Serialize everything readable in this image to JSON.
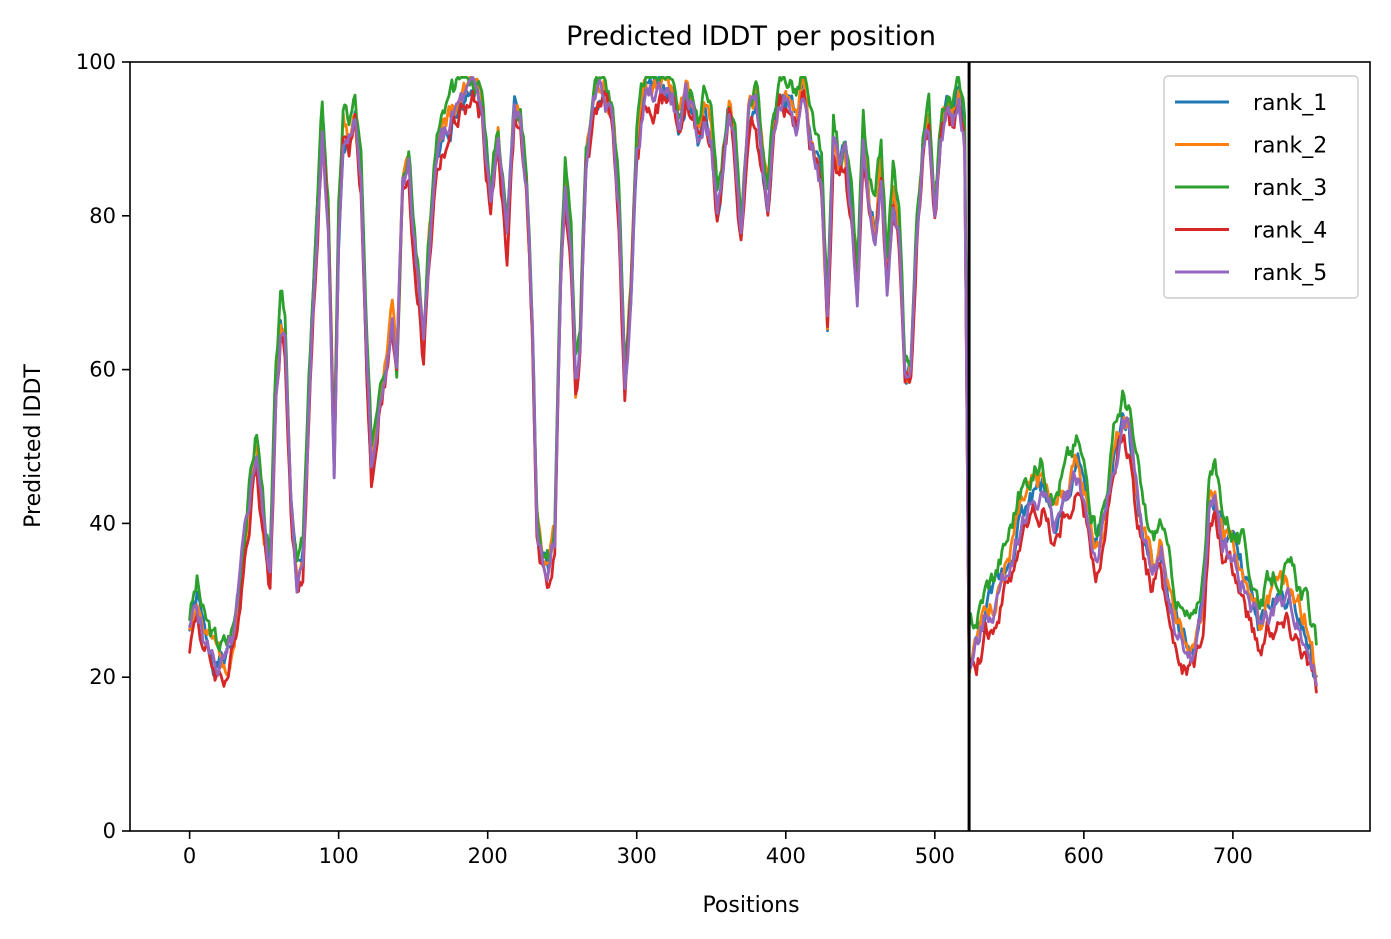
{
  "chart_data": {
    "type": "line",
    "title": "Predicted lDDT per position",
    "xlabel": "Positions",
    "ylabel": "Predicted lDDT",
    "xlim": [
      -40,
      792
    ],
    "ylim": [
      0,
      100
    ],
    "xticks": [
      0,
      100,
      200,
      300,
      400,
      500,
      600,
      700
    ],
    "yticks": [
      0,
      20,
      40,
      60,
      80,
      100
    ],
    "grid": false,
    "legend_position": "top-right",
    "vline_x": 523,
    "series": [
      {
        "name": "rank_1",
        "color": "#1f77b4",
        "offset": 0.0,
        "seed": 1
      },
      {
        "name": "rank_2",
        "color": "#ff7f0e",
        "offset": 0.6,
        "seed": 2
      },
      {
        "name": "rank_3",
        "color": "#2ca02c",
        "offset": 2.2,
        "seed": 3
      },
      {
        "name": "rank_4",
        "color": "#d62728",
        "offset": -1.6,
        "seed": 4
      },
      {
        "name": "rank_5",
        "color": "#9467bd",
        "offset": -0.4,
        "seed": 5
      }
    ],
    "profile": [
      [
        0,
        26
      ],
      [
        5,
        30
      ],
      [
        10,
        25
      ],
      [
        18,
        22
      ],
      [
        25,
        22
      ],
      [
        30,
        25
      ],
      [
        36,
        36
      ],
      [
        42,
        46
      ],
      [
        45,
        50
      ],
      [
        50,
        40
      ],
      [
        54,
        33
      ],
      [
        58,
        58
      ],
      [
        61,
        66
      ],
      [
        64,
        64
      ],
      [
        68,
        42
      ],
      [
        72,
        33
      ],
      [
        76,
        35
      ],
      [
        82,
        65
      ],
      [
        86,
        80
      ],
      [
        89,
        92
      ],
      [
        93,
        80
      ],
      [
        97,
        48
      ],
      [
        100,
        78
      ],
      [
        103,
        91
      ],
      [
        107,
        90
      ],
      [
        111,
        93
      ],
      [
        115,
        85
      ],
      [
        119,
        60
      ],
      [
        122,
        47
      ],
      [
        125,
        52
      ],
      [
        128,
        58
      ],
      [
        133,
        62
      ],
      [
        136,
        66
      ],
      [
        139,
        60
      ],
      [
        143,
        85
      ],
      [
        147,
        87
      ],
      [
        150,
        78
      ],
      [
        154,
        70
      ],
      [
        157,
        62
      ],
      [
        160,
        74
      ],
      [
        166,
        88
      ],
      [
        174,
        92
      ],
      [
        182,
        95
      ],
      [
        190,
        96
      ],
      [
        196,
        94
      ],
      [
        202,
        82
      ],
      [
        207,
        90
      ],
      [
        213,
        77
      ],
      [
        218,
        94
      ],
      [
        222,
        92
      ],
      [
        226,
        84
      ],
      [
        230,
        65
      ],
      [
        233,
        40
      ],
      [
        237,
        35
      ],
      [
        241,
        34
      ],
      [
        245,
        38
      ],
      [
        249,
        72
      ],
      [
        252,
        85
      ],
      [
        256,
        75
      ],
      [
        259,
        58
      ],
      [
        262,
        63
      ],
      [
        266,
        88
      ],
      [
        272,
        95
      ],
      [
        278,
        96
      ],
      [
        284,
        92
      ],
      [
        288,
        82
      ],
      [
        292,
        58
      ],
      [
        296,
        70
      ],
      [
        300,
        88
      ],
      [
        305,
        95
      ],
      [
        312,
        96
      ],
      [
        318,
        97
      ],
      [
        324,
        96
      ],
      [
        328,
        92
      ],
      [
        333,
        95
      ],
      [
        338,
        94
      ],
      [
        342,
        90
      ],
      [
        346,
        94
      ],
      [
        350,
        90
      ],
      [
        354,
        80
      ],
      [
        358,
        87
      ],
      [
        362,
        94
      ],
      [
        366,
        88
      ],
      [
        370,
        78
      ],
      [
        375,
        92
      ],
      [
        380,
        95
      ],
      [
        384,
        88
      ],
      [
        388,
        82
      ],
      [
        392,
        92
      ],
      [
        396,
        95
      ],
      [
        402,
        96
      ],
      [
        408,
        94
      ],
      [
        412,
        97
      ],
      [
        416,
        90
      ],
      [
        420,
        88
      ],
      [
        424,
        84
      ],
      [
        428,
        66
      ],
      [
        432,
        90
      ],
      [
        436,
        86
      ],
      [
        440,
        88
      ],
      [
        444,
        80
      ],
      [
        448,
        70
      ],
      [
        452,
        90
      ],
      [
        456,
        82
      ],
      [
        460,
        78
      ],
      [
        464,
        86
      ],
      [
        468,
        72
      ],
      [
        472,
        84
      ],
      [
        476,
        78
      ],
      [
        480,
        58
      ],
      [
        484,
        60
      ],
      [
        488,
        78
      ],
      [
        492,
        88
      ],
      [
        496,
        92
      ],
      [
        500,
        80
      ],
      [
        504,
        90
      ],
      [
        508,
        94
      ],
      [
        512,
        92
      ],
      [
        516,
        96
      ],
      [
        520,
        90
      ],
      [
        523,
        22
      ],
      [
        528,
        24
      ],
      [
        534,
        28
      ],
      [
        540,
        30
      ],
      [
        548,
        34
      ],
      [
        556,
        40
      ],
      [
        564,
        43
      ],
      [
        572,
        45
      ],
      [
        580,
        40
      ],
      [
        588,
        44
      ],
      [
        596,
        47
      ],
      [
        602,
        42
      ],
      [
        608,
        36
      ],
      [
        614,
        40
      ],
      [
        620,
        48
      ],
      [
        626,
        53
      ],
      [
        630,
        52
      ],
      [
        634,
        46
      ],
      [
        640,
        38
      ],
      [
        646,
        34
      ],
      [
        652,
        37
      ],
      [
        658,
        30
      ],
      [
        664,
        26
      ],
      [
        668,
        24
      ],
      [
        674,
        23
      ],
      [
        680,
        30
      ],
      [
        684,
        42
      ],
      [
        688,
        43
      ],
      [
        694,
        38
      ],
      [
        700,
        36
      ],
      [
        706,
        34
      ],
      [
        712,
        30
      ],
      [
        718,
        27
      ],
      [
        724,
        29
      ],
      [
        730,
        30
      ],
      [
        736,
        30
      ],
      [
        742,
        29
      ],
      [
        748,
        27
      ],
      [
        752,
        24
      ],
      [
        756,
        20
      ]
    ]
  }
}
